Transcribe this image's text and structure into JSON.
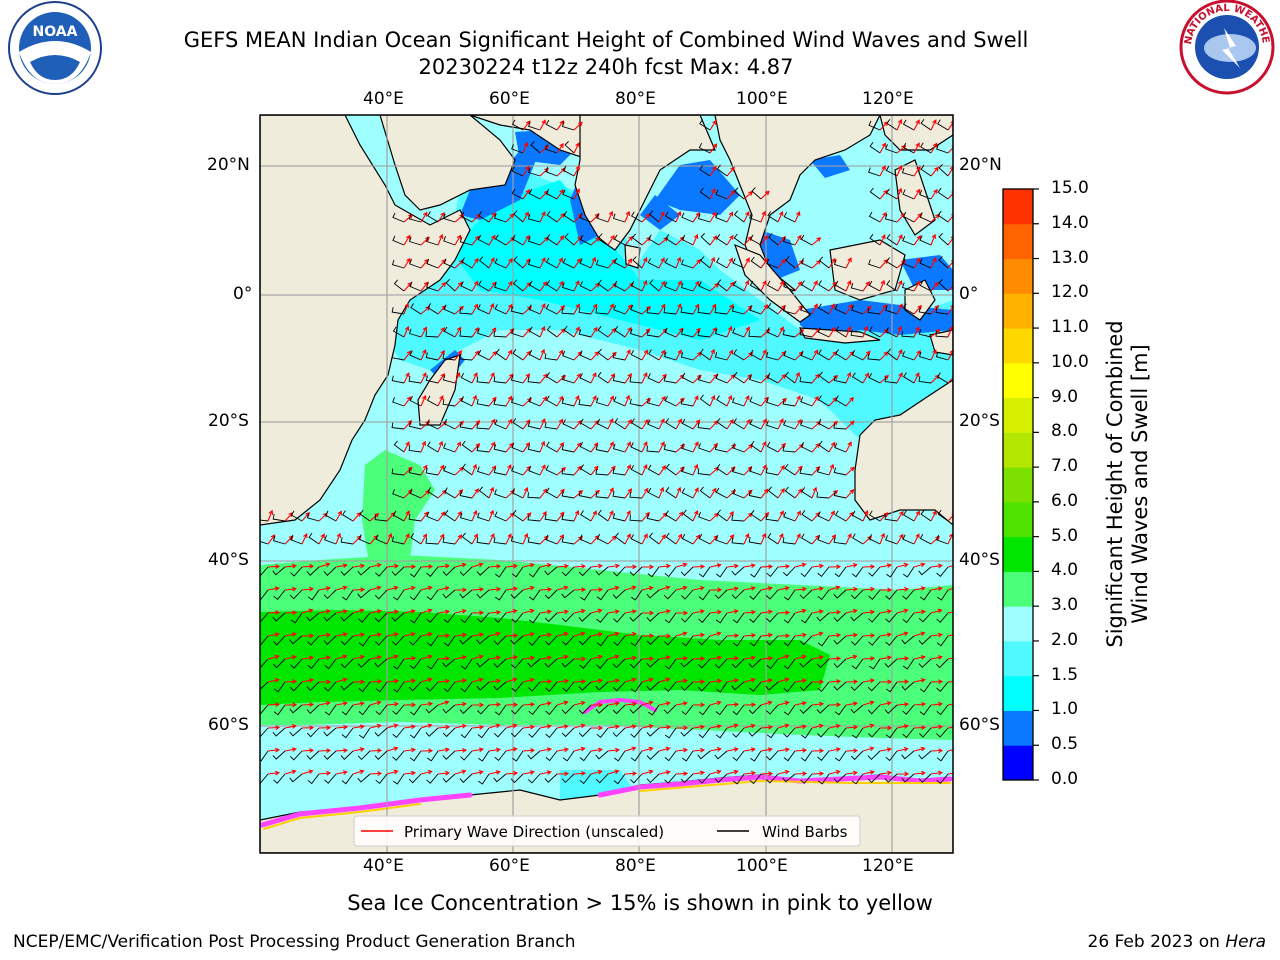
{
  "header": {
    "title_line1": "GEFS MEAN Indian Ocean Significant Height of Combined Wind Waves and Swell",
    "title_line2": "20230224 t12z 240h fcst   Max: 4.87"
  },
  "logos": {
    "noaa_text": "NOAA",
    "nws_text": "NATIONAL WEATHER SERVICE"
  },
  "map": {
    "lon_labels_top": [
      "40°E",
      "60°E",
      "80°E",
      "100°E",
      "120°E"
    ],
    "lon_labels_bottom": [
      "40°E",
      "60°E",
      "80°E",
      "100°E",
      "120°E"
    ],
    "lat_labels_left": [
      "20°N",
      "0°",
      "20°S",
      "40°S",
      "60°S"
    ],
    "lat_labels_right": [
      "20°N",
      "0°",
      "20°S",
      "40°S",
      "60°S"
    ],
    "legend": {
      "wave_direction": "Primary Wave Direction (unscaled)",
      "wind_barbs": "Wind Barbs"
    },
    "colors": {
      "ocean_light": "#9fffff",
      "ocean_cyan": "#00ffff",
      "ocean_mid": "#4ff9ff",
      "ocean_blue": "#0a78ff",
      "land": "#efecdc",
      "wave_green_light": "#4cff7a",
      "wave_green": "#00e600",
      "arrow": "#ff0000",
      "sea_ice": "#ff44ff"
    }
  },
  "colorbar": {
    "label_line1": "Significant Height of Combined",
    "label_line2": "Wind Waves and Swell [m]",
    "ticks": [
      "0.0",
      "0.5",
      "1.0",
      "1.5",
      "2.0",
      "3.0",
      "4.0",
      "5.0",
      "6.0",
      "7.0",
      "8.0",
      "9.0",
      "10.0",
      "11.0",
      "12.0",
      "13.0",
      "14.0",
      "15.0"
    ],
    "colors": [
      "#0000ff",
      "#0a78ff",
      "#00ffff",
      "#4ff9ff",
      "#9fffff",
      "#4cff7a",
      "#00e600",
      "#4ee200",
      "#7ce000",
      "#b3e600",
      "#d6ee00",
      "#ffff00",
      "#ffd800",
      "#ffb200",
      "#ff8c00",
      "#ff6400",
      "#ff3200"
    ]
  },
  "caption": "Sea Ice Concentration > 15% is shown in pink to yellow",
  "footer": {
    "left": "NCEP/EMC/Verification Post Processing Product Generation Branch",
    "right_date": "26 Feb 2023 on ",
    "right_machine": "Hera"
  }
}
